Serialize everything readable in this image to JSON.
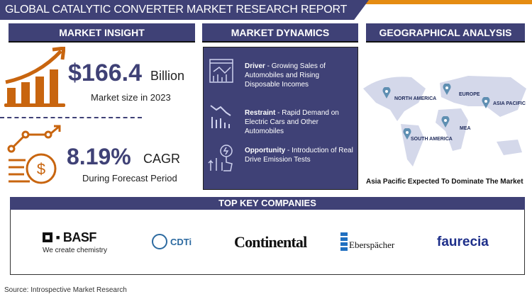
{
  "title": "GLOBAL CATALYTIC CONVERTER MARKET RESEARCH REPORT",
  "colors": {
    "navy": "#3f4176",
    "orange": "#c8650f",
    "accent": "#e58c12"
  },
  "sections": {
    "insight": "MARKET INSIGHT",
    "dynamics": "MARKET DYNAMICS",
    "geo": "GEOGRAPHICAL ANALYSIS"
  },
  "insight": {
    "market_value": "$166.4",
    "market_unit": "Billion",
    "market_caption": "Market size in 2023",
    "cagr_value": "8.19%",
    "cagr_unit": "CAGR",
    "cagr_caption": "During Forecast Period"
  },
  "dynamics": [
    {
      "label": "Driver",
      "text": " - Growing Sales of Automobiles and Rising Disposable Incomes",
      "icon": "analytics-chart-icon"
    },
    {
      "label": "Restraint",
      "text": " - Rapid Demand on Electric Cars and Other Automobiles",
      "icon": "declining-chart-icon"
    },
    {
      "label": "Opportunity",
      "text": " - Introduction of Real Drive Emission Tests",
      "icon": "growth-hand-icon"
    }
  ],
  "geo": {
    "regions": [
      "NORTH AMERICA",
      "EUROPE",
      "ASIA PACIFIC",
      "MEA",
      "SOUTH AMERICA"
    ],
    "caption": "Asia Pacific Expected To Dominate The Market"
  },
  "companies": {
    "title": "TOP KEY COMPANIES",
    "logos": [
      {
        "name": "BASF",
        "tagline": "We create chemistry"
      },
      {
        "name": "CDTi"
      },
      {
        "name": "Continental"
      },
      {
        "name": "Eberspächer"
      },
      {
        "name": "faurecia"
      }
    ]
  },
  "source": "Source: Introspective Market Research"
}
